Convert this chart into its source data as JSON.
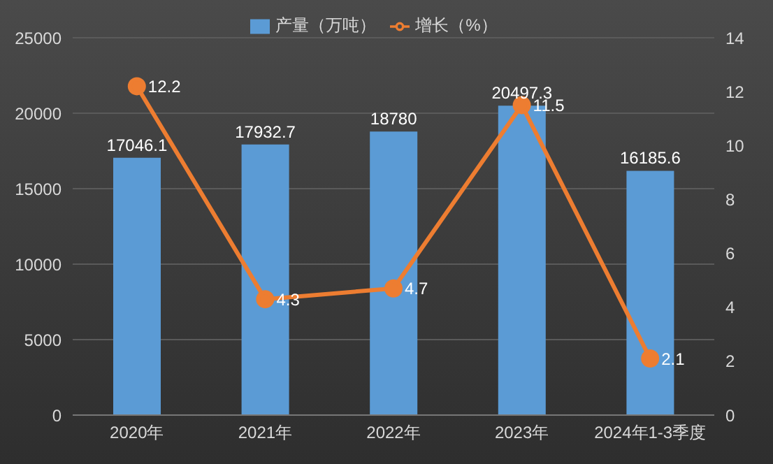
{
  "chart_data": {
    "type": "bar",
    "categories": [
      "2020年",
      "2021年",
      "2022年",
      "2023年",
      "2024年1-3季度"
    ],
    "series": [
      {
        "name": "产量（万吨）",
        "color": "#5b9bd5",
        "values": [
          17046.1,
          17932.7,
          18780,
          20497.3,
          16185.6
        ]
      },
      {
        "name": "增长（%）",
        "type": "line",
        "axis": "y2",
        "color": "#ed7d31",
        "values": [
          12.2,
          4.3,
          4.7,
          11.5,
          2.1
        ]
      }
    ],
    "ylim": [
      0,
      25000
    ],
    "yticks": [
      0,
      5000,
      10000,
      15000,
      20000,
      25000
    ],
    "y2lim": [
      0,
      14
    ],
    "y2ticks": [
      0,
      2,
      4,
      6,
      8,
      10,
      12,
      14
    ],
    "grid": "y",
    "legend": "top",
    "marker": "circle",
    "data_labels": true
  }
}
